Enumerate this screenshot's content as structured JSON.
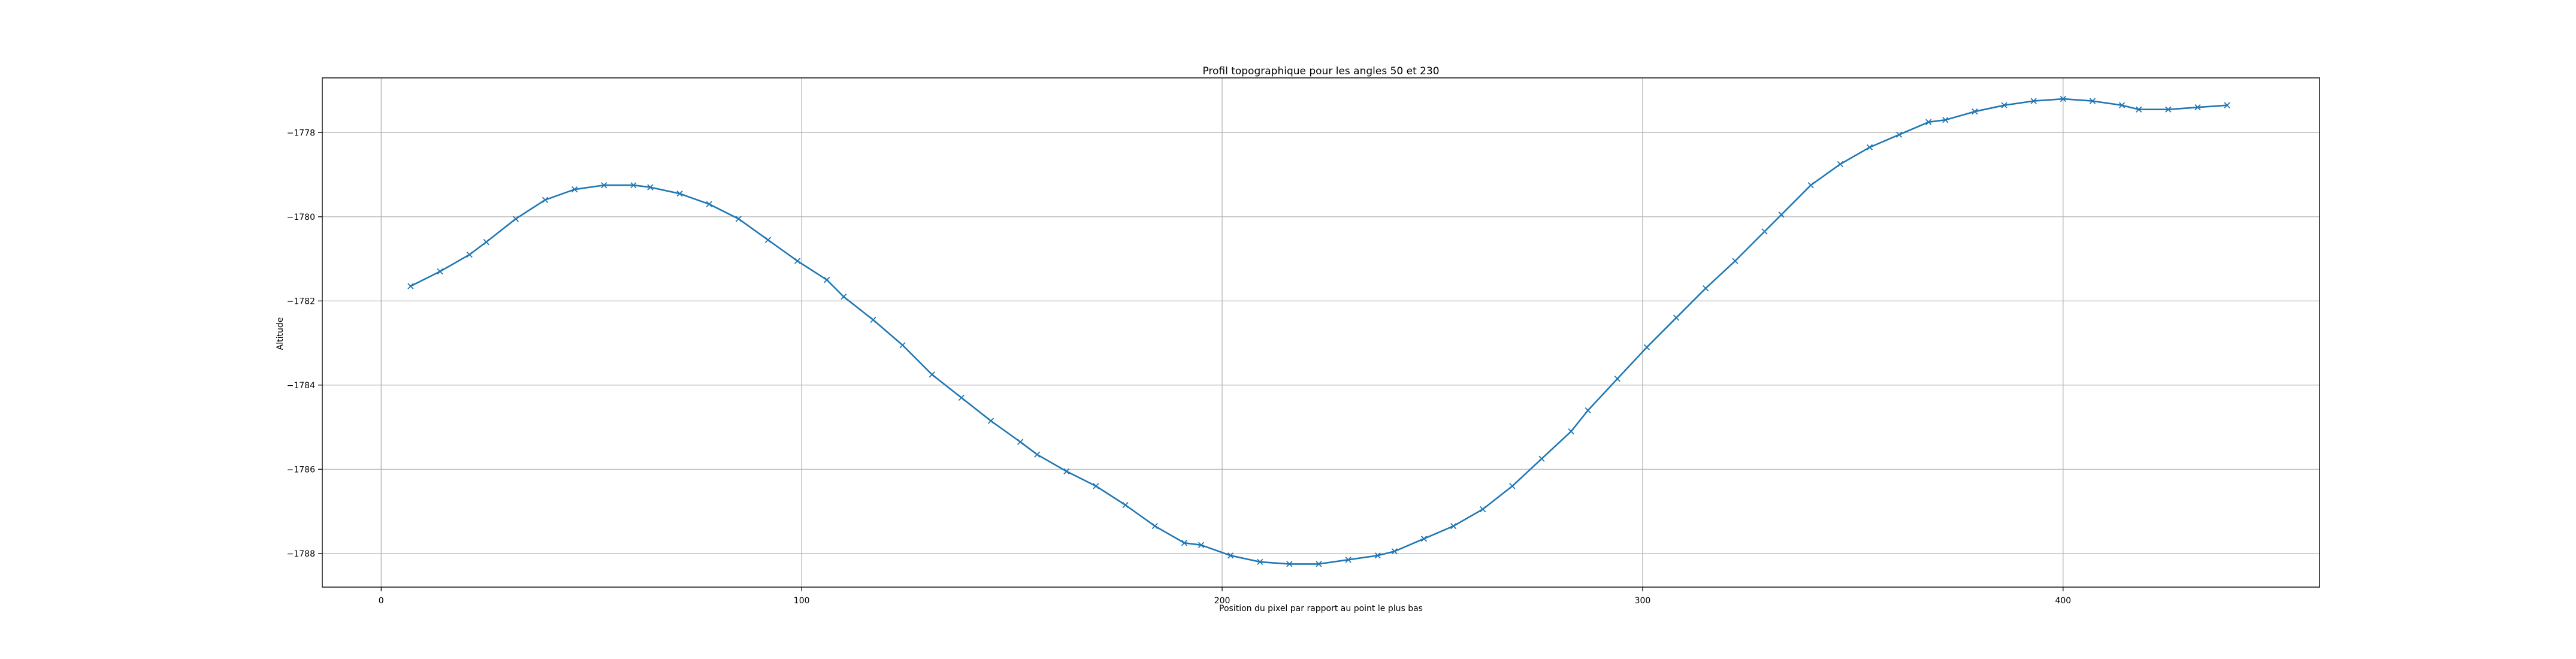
{
  "chart_data": {
    "type": "line",
    "title": "Profil topographique pour les angles 50 et 230",
    "xlabel": "Position du pixel par rapport au point le plus bas",
    "ylabel": "Altitude",
    "xlim": [
      -14,
      461
    ],
    "ylim": [
      -1788.8,
      -1776.7
    ],
    "xticks": [
      0,
      100,
      200,
      300,
      400
    ],
    "yticks": [
      -1788,
      -1786,
      -1784,
      -1782,
      -1780,
      -1778
    ],
    "grid": true,
    "colors": {
      "line": "#1f77b4",
      "frame": "#000000",
      "grid": "#b0b0b0"
    },
    "series": [
      {
        "marker": "x",
        "x": [
          7,
          14,
          21,
          25,
          32,
          39,
          46,
          53,
          60,
          64,
          71,
          78,
          85,
          92,
          99,
          106,
          110,
          117,
          124,
          131,
          138,
          145,
          152,
          156,
          163,
          170,
          177,
          184,
          191,
          195,
          202,
          209,
          216,
          223,
          230,
          237,
          241,
          248,
          255,
          262,
          269,
          276,
          283,
          287,
          294,
          301,
          308,
          315,
          322,
          329,
          333,
          340,
          347,
          354,
          361,
          368,
          372,
          379,
          386,
          393,
          400,
          407,
          414,
          418,
          425,
          432,
          439
        ],
        "y": [
          -1781.65,
          -1781.3,
          -1780.9,
          -1780.6,
          -1780.05,
          -1779.6,
          -1779.35,
          -1779.25,
          -1779.25,
          -1779.3,
          -1779.45,
          -1779.7,
          -1780.05,
          -1780.55,
          -1781.05,
          -1781.5,
          -1781.9,
          -1782.45,
          -1783.05,
          -1783.75,
          -1784.3,
          -1784.85,
          -1785.35,
          -1785.65,
          -1786.05,
          -1786.4,
          -1786.85,
          -1787.35,
          -1787.75,
          -1787.8,
          -1788.05,
          -1788.2,
          -1788.25,
          -1788.25,
          -1788.15,
          -1788.05,
          -1787.95,
          -1787.65,
          -1787.35,
          -1786.95,
          -1786.4,
          -1785.75,
          -1785.1,
          -1784.6,
          -1783.85,
          -1783.1,
          -1782.4,
          -1781.7,
          -1781.05,
          -1780.35,
          -1779.95,
          -1779.25,
          -1778.75,
          -1778.35,
          -1778.05,
          -1777.75,
          -1777.7,
          -1777.5,
          -1777.35,
          -1777.25,
          -1777.2,
          -1777.25,
          -1777.35,
          -1777.45,
          -1777.45,
          -1777.4,
          -1777.35
        ]
      }
    ]
  }
}
